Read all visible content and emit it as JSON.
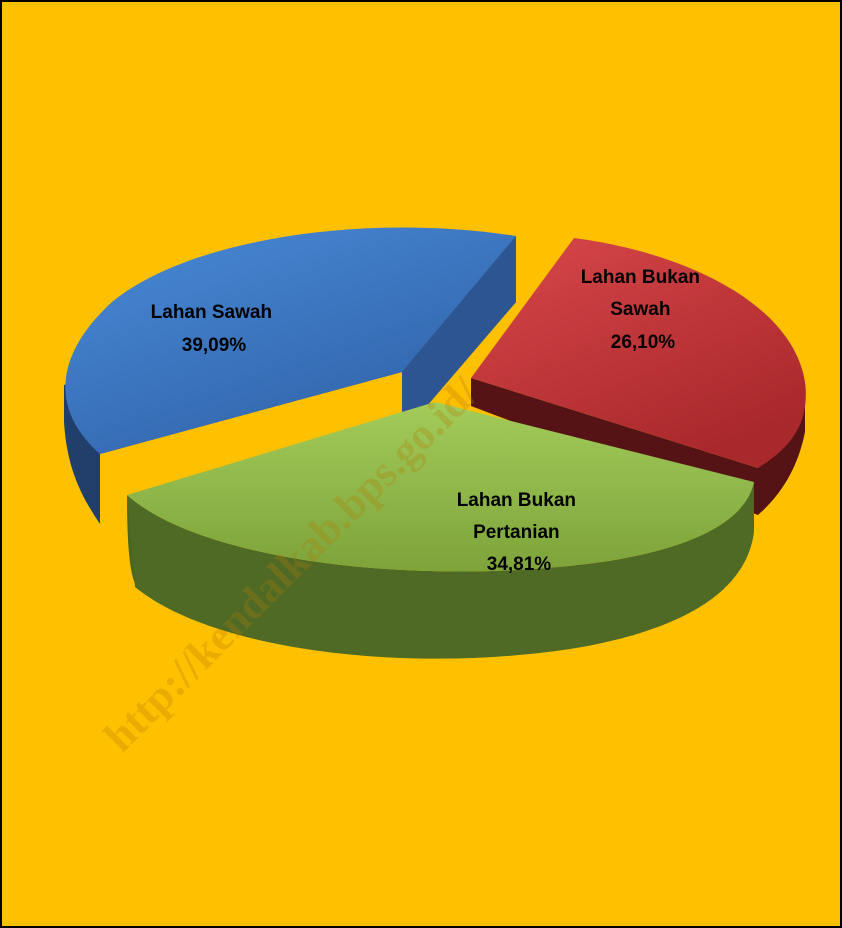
{
  "chart_data": {
    "type": "pie",
    "style": "3d-exploded",
    "slices": [
      {
        "label": "Lahan Sawah",
        "value": 39.09,
        "display": "39,09%",
        "color": "#3a76c4",
        "side_color": "#213e6a"
      },
      {
        "label": "Lahan Bukan Sawah",
        "value": 26.1,
        "display": "26,10%",
        "color": "#c0373a",
        "side_color": "#5a1416"
      },
      {
        "label": "Lahan Bukan Pertanian",
        "value": 34.81,
        "display": "34,81%",
        "color": "#8db545",
        "side_color": "#46601f"
      }
    ],
    "legend": "none",
    "background": "#ffc000"
  },
  "watermark": "http://kendalkab.bps.go.id/"
}
